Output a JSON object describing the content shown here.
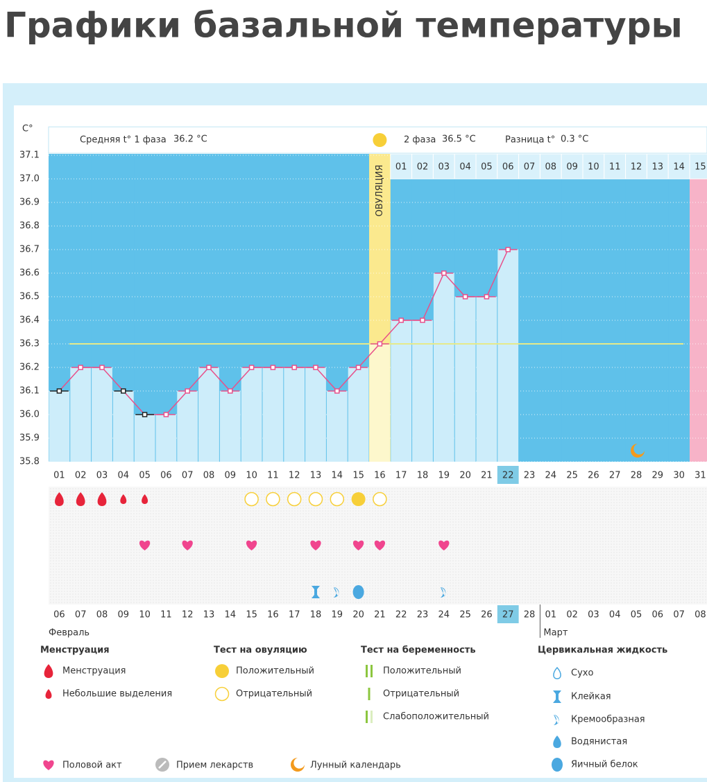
{
  "title": "Графики базальной температуры",
  "chart_data": {
    "type": "line",
    "y_label": "C°",
    "header": {
      "phase1_label": "Средняя t° 1 фаза",
      "phase1_value": "36.2 °C",
      "phase2_label": "2 фаза",
      "phase2_value": "36.5 °C",
      "diff_label": "Разница t°",
      "diff_value": "0.3 °C"
    },
    "ovulation_label": "ОВУЛЯЦИЯ",
    "ovulation_index": 15,
    "categories": [
      "01",
      "02",
      "03",
      "04",
      "05",
      "06",
      "07",
      "08",
      "09",
      "10",
      "11",
      "12",
      "13",
      "14",
      "15",
      "16",
      "17",
      "18",
      "19",
      "20",
      "21",
      "22",
      "23",
      "24",
      "25",
      "26",
      "27",
      "28",
      "29",
      "30",
      "31"
    ],
    "values": [
      36.1,
      36.2,
      36.2,
      36.1,
      36.0,
      36.0,
      36.1,
      36.2,
      36.1,
      36.2,
      36.2,
      36.2,
      36.2,
      36.1,
      36.2,
      36.3,
      36.4,
      36.4,
      36.6,
      36.5,
      36.5,
      36.7,
      null,
      null,
      null,
      null,
      null,
      null,
      null,
      null,
      null
    ],
    "color": "#e8508a",
    "coverline": 36.3,
    "ylim": [
      35.8,
      37.1
    ],
    "yticks": [
      35.8,
      35.9,
      {
        "value": 36.0,
        "label": "36.0"
      },
      36.1,
      36.2,
      36.3,
      36.4,
      36.5,
      36.6,
      36.7,
      36.8,
      36.9,
      {
        "value": 37.0,
        "label": "37.0"
      },
      37.1
    ],
    "phase2_days": [
      "01",
      "02",
      "03",
      "04",
      "05",
      "06",
      "07",
      "08",
      "09",
      "10",
      "11",
      "12",
      "13",
      "14",
      "15"
    ],
    "current_index": 21,
    "dates": [
      "06",
      "07",
      "08",
      "09",
      "10",
      "11",
      "12",
      "13",
      "14",
      "15",
      "16",
      "17",
      "18",
      "19",
      "20",
      "21",
      "22",
      "23",
      "24",
      "25",
      "26",
      "27",
      "28",
      "01",
      "02",
      "03",
      "04",
      "05",
      "06",
      "07",
      "08"
    ],
    "red_dates": [
      0,
      6,
      7,
      13,
      14,
      20,
      28,
      29
    ],
    "months": [
      {
        "label": "Февраль",
        "start": 0
      },
      {
        "label": "Март",
        "start": 23
      }
    ],
    "menstruation_heavy": [
      0,
      1,
      2
    ],
    "menstruation_light": [
      3,
      4
    ],
    "ovulation_test_negative": [
      9,
      10,
      11,
      12,
      13,
      15
    ],
    "ovulation_test_positive": [
      14
    ],
    "intercourse": [
      4,
      6,
      9,
      12,
      14,
      15,
      18
    ],
    "fluid_sticky": [
      12
    ],
    "fluid_cream": [
      13,
      18
    ],
    "fluid_eggwhite": [
      14
    ],
    "moon": [
      27
    ]
  },
  "legend": {
    "groups": [
      {
        "title": "Менструация",
        "items": [
          "Менструация",
          "Небольшие выделения"
        ]
      },
      {
        "title": "Тест на овуляцию",
        "items": [
          "Положительный",
          "Отрицательный"
        ]
      },
      {
        "title": "Тест на беременность",
        "items": [
          "Положительный",
          "Отрицательный",
          "Слабоположительный"
        ]
      },
      {
        "title": "Цервикальная жидкость",
        "items": [
          "Сухо",
          "Клейкая",
          "Кремообразная",
          "Водянистая",
          "Яичный белок"
        ]
      }
    ],
    "bottom": [
      "Половой акт",
      "Прием лекарств",
      "Лунный календарь"
    ]
  }
}
